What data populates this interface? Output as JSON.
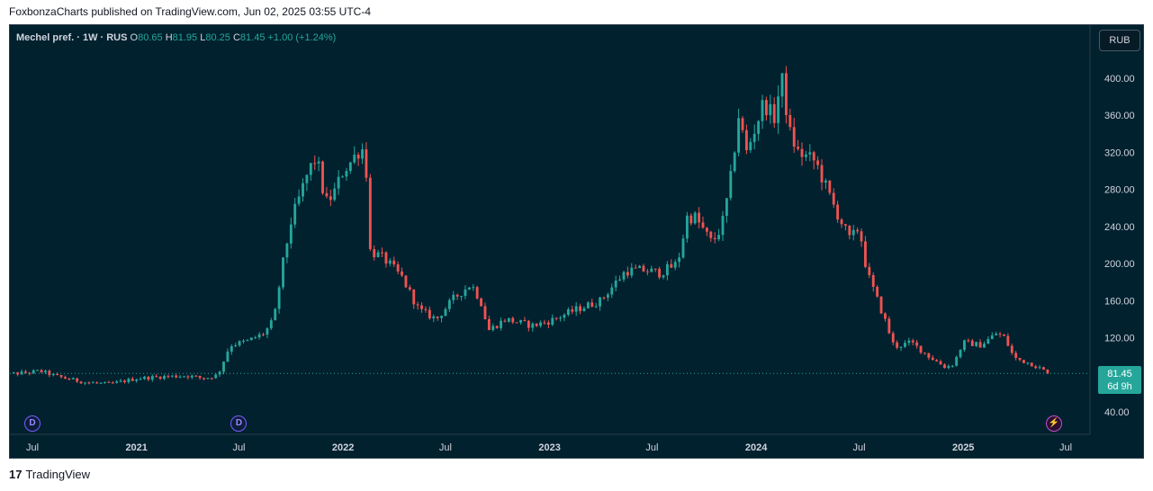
{
  "header": {
    "text": "FoxbonzaCharts published on TradingView.com, Jun 02, 2025 03:55 UTC-4"
  },
  "legend": {
    "symbol": "Mechel pref. · 1W · RUS",
    "o_label": "O",
    "o_value": "80.65",
    "h_label": "H",
    "h_value": "81.95",
    "l_label": "L",
    "l_value": "80.25",
    "c_label": "C",
    "c_value": "81.45",
    "change": "+1.00 (+1.24%)"
  },
  "currency_button": "RUB",
  "price_tag": {
    "price": "81.45",
    "countdown": "6d 9h"
  },
  "events": {
    "dividend_label": "D",
    "bolt_label": "⚡"
  },
  "footer": {
    "logo": "17",
    "brand": "TradingView"
  },
  "colors": {
    "background": "#01212f",
    "up": "#26a69a",
    "down": "#ef5350",
    "text": "#d1d4dc"
  },
  "chart_data": {
    "type": "candlestick",
    "interval": "1W",
    "currency": "RUB",
    "ylim": [
      40,
      420
    ],
    "y_ticks": [
      "40.00",
      "120.00",
      "160.00",
      "200.00",
      "240.00",
      "280.00",
      "320.00",
      "360.00",
      "400.00"
    ],
    "x_ticks": [
      "Jul",
      "2021",
      "Jul",
      "2022",
      "Jul",
      "2023",
      "Jul",
      "2024",
      "Jul",
      "2025",
      "Jul"
    ],
    "x_tick_dates": [
      "2020-07-01",
      "2021-01-01",
      "2021-07-01",
      "2022-01-01",
      "2022-07-01",
      "2023-01-01",
      "2023-07-01",
      "2024-01-01",
      "2024-07-01",
      "2025-01-01",
      "2025-07-01"
    ],
    "last_close": 81.45,
    "dividend_dates": [
      "2020-07-01",
      "2021-07-01"
    ],
    "price_path": [
      [
        "2020-05-01",
        80
      ],
      [
        "2020-06-15",
        82
      ],
      [
        "2020-07-15",
        84
      ],
      [
        "2020-08-15",
        78
      ],
      [
        "2020-10-01",
        72
      ],
      [
        "2020-11-15",
        70
      ],
      [
        "2021-01-01",
        76
      ],
      [
        "2021-02-15",
        78
      ],
      [
        "2021-04-01",
        79
      ],
      [
        "2021-05-01",
        76
      ],
      [
        "2021-05-25",
        80
      ],
      [
        "2021-06-15",
        112
      ],
      [
        "2021-07-15",
        116
      ],
      [
        "2021-08-15",
        125
      ],
      [
        "2021-09-01",
        140
      ],
      [
        "2021-09-15",
        195
      ],
      [
        "2021-10-01",
        245
      ],
      [
        "2021-11-01",
        300
      ],
      [
        "2021-11-15",
        315
      ],
      [
        "2021-12-01",
        265
      ],
      [
        "2021-12-15",
        275
      ],
      [
        "2022-01-01",
        300
      ],
      [
        "2022-01-15",
        310
      ],
      [
        "2022-02-01",
        325
      ],
      [
        "2022-02-10",
        320
      ],
      [
        "2022-02-15",
        215
      ],
      [
        "2022-03-15",
        205
      ],
      [
        "2022-04-15",
        185
      ],
      [
        "2022-05-15",
        150
      ],
      [
        "2022-06-15",
        140
      ],
      [
        "2022-07-15",
        162
      ],
      [
        "2022-08-15",
        178
      ],
      [
        "2022-09-01",
        160
      ],
      [
        "2022-09-15",
        128
      ],
      [
        "2022-10-15",
        140
      ],
      [
        "2022-12-01",
        133
      ],
      [
        "2023-01-01",
        138
      ],
      [
        "2023-02-15",
        150
      ],
      [
        "2023-04-01",
        160
      ],
      [
        "2023-05-15",
        192
      ],
      [
        "2023-06-15",
        193
      ],
      [
        "2023-07-15",
        190
      ],
      [
        "2023-08-15",
        200
      ],
      [
        "2023-09-01",
        250
      ],
      [
        "2023-09-15",
        250
      ],
      [
        "2023-10-15",
        222
      ],
      [
        "2023-11-01",
        240
      ],
      [
        "2023-11-15",
        282
      ],
      [
        "2023-12-01",
        360
      ],
      [
        "2023-12-15",
        320
      ],
      [
        "2024-01-01",
        350
      ],
      [
        "2024-01-15",
        375
      ],
      [
        "2024-02-01",
        355
      ],
      [
        "2024-02-15",
        400
      ],
      [
        "2024-03-01",
        340
      ],
      [
        "2024-03-15",
        320
      ],
      [
        "2024-04-15",
        310
      ],
      [
        "2024-05-15",
        265
      ],
      [
        "2024-06-15",
        225
      ],
      [
        "2024-07-01",
        240
      ],
      [
        "2024-07-15",
        190
      ],
      [
        "2024-08-15",
        140
      ],
      [
        "2024-09-01",
        110
      ],
      [
        "2024-10-01",
        115
      ],
      [
        "2024-11-01",
        100
      ],
      [
        "2024-12-01",
        88
      ],
      [
        "2024-12-15",
        92
      ],
      [
        "2025-01-01",
        115
      ],
      [
        "2025-02-01",
        112
      ],
      [
        "2025-03-01",
        125
      ],
      [
        "2025-03-15",
        120
      ],
      [
        "2025-04-01",
        98
      ],
      [
        "2025-05-01",
        92
      ],
      [
        "2025-06-02",
        81.45
      ]
    ]
  }
}
